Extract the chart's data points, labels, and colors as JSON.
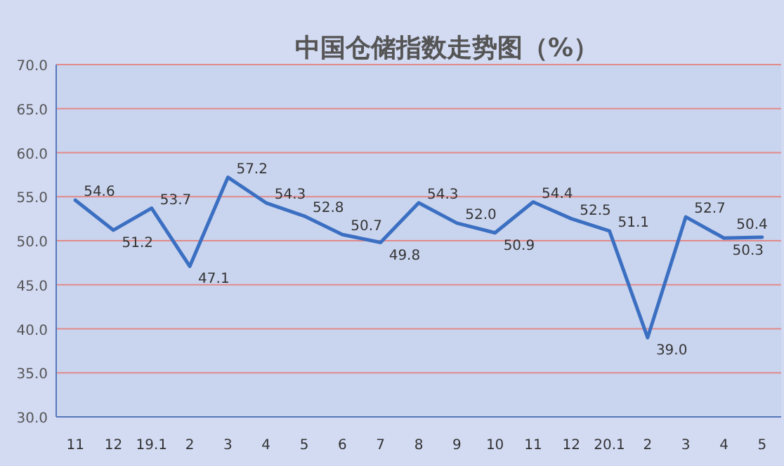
{
  "chart_data": {
    "type": "line",
    "title": "中国仓储指数走势图（%）",
    "categories": [
      "11",
      "12",
      "19.1",
      "2",
      "3",
      "4",
      "5",
      "6",
      "7",
      "8",
      "9",
      "10",
      "11",
      "12",
      "20.1",
      "2",
      "3",
      "4",
      "5"
    ],
    "series": [
      {
        "color": "#3b6fc2",
        "values": [
          54.6,
          51.2,
          53.7,
          47.1,
          57.2,
          54.3,
          52.8,
          50.7,
          49.8,
          54.3,
          52.0,
          50.9,
          54.4,
          52.5,
          51.1,
          39.0,
          52.7,
          50.3,
          50.4
        ]
      }
    ],
    "value_labels": [
      "54.6",
      "51.2",
      "53.7",
      "47.1",
      "57.2",
      "54.3",
      "52.8",
      "50.7",
      "49.8",
      "54.3",
      "52.0",
      "50.9",
      "54.4",
      "52.5",
      "51.1",
      "39.0",
      "52.7",
      "50.3",
      "50.4"
    ],
    "ylim": [
      30,
      70
    ],
    "yticks": [
      {
        "value": 30,
        "label": "30.0"
      },
      {
        "value": 35,
        "label": "35.0"
      },
      {
        "value": 40,
        "label": "40.0"
      },
      {
        "value": 45,
        "label": "45.0"
      },
      {
        "value": 50,
        "label": "50.0"
      },
      {
        "value": 55,
        "label": "55.0"
      },
      {
        "value": 60,
        "label": "60.0"
      },
      {
        "value": 65,
        "label": "65.0"
      },
      {
        "value": 70,
        "label": "70.0"
      }
    ],
    "grid": "y",
    "marker": "none",
    "line_style": "solid"
  }
}
